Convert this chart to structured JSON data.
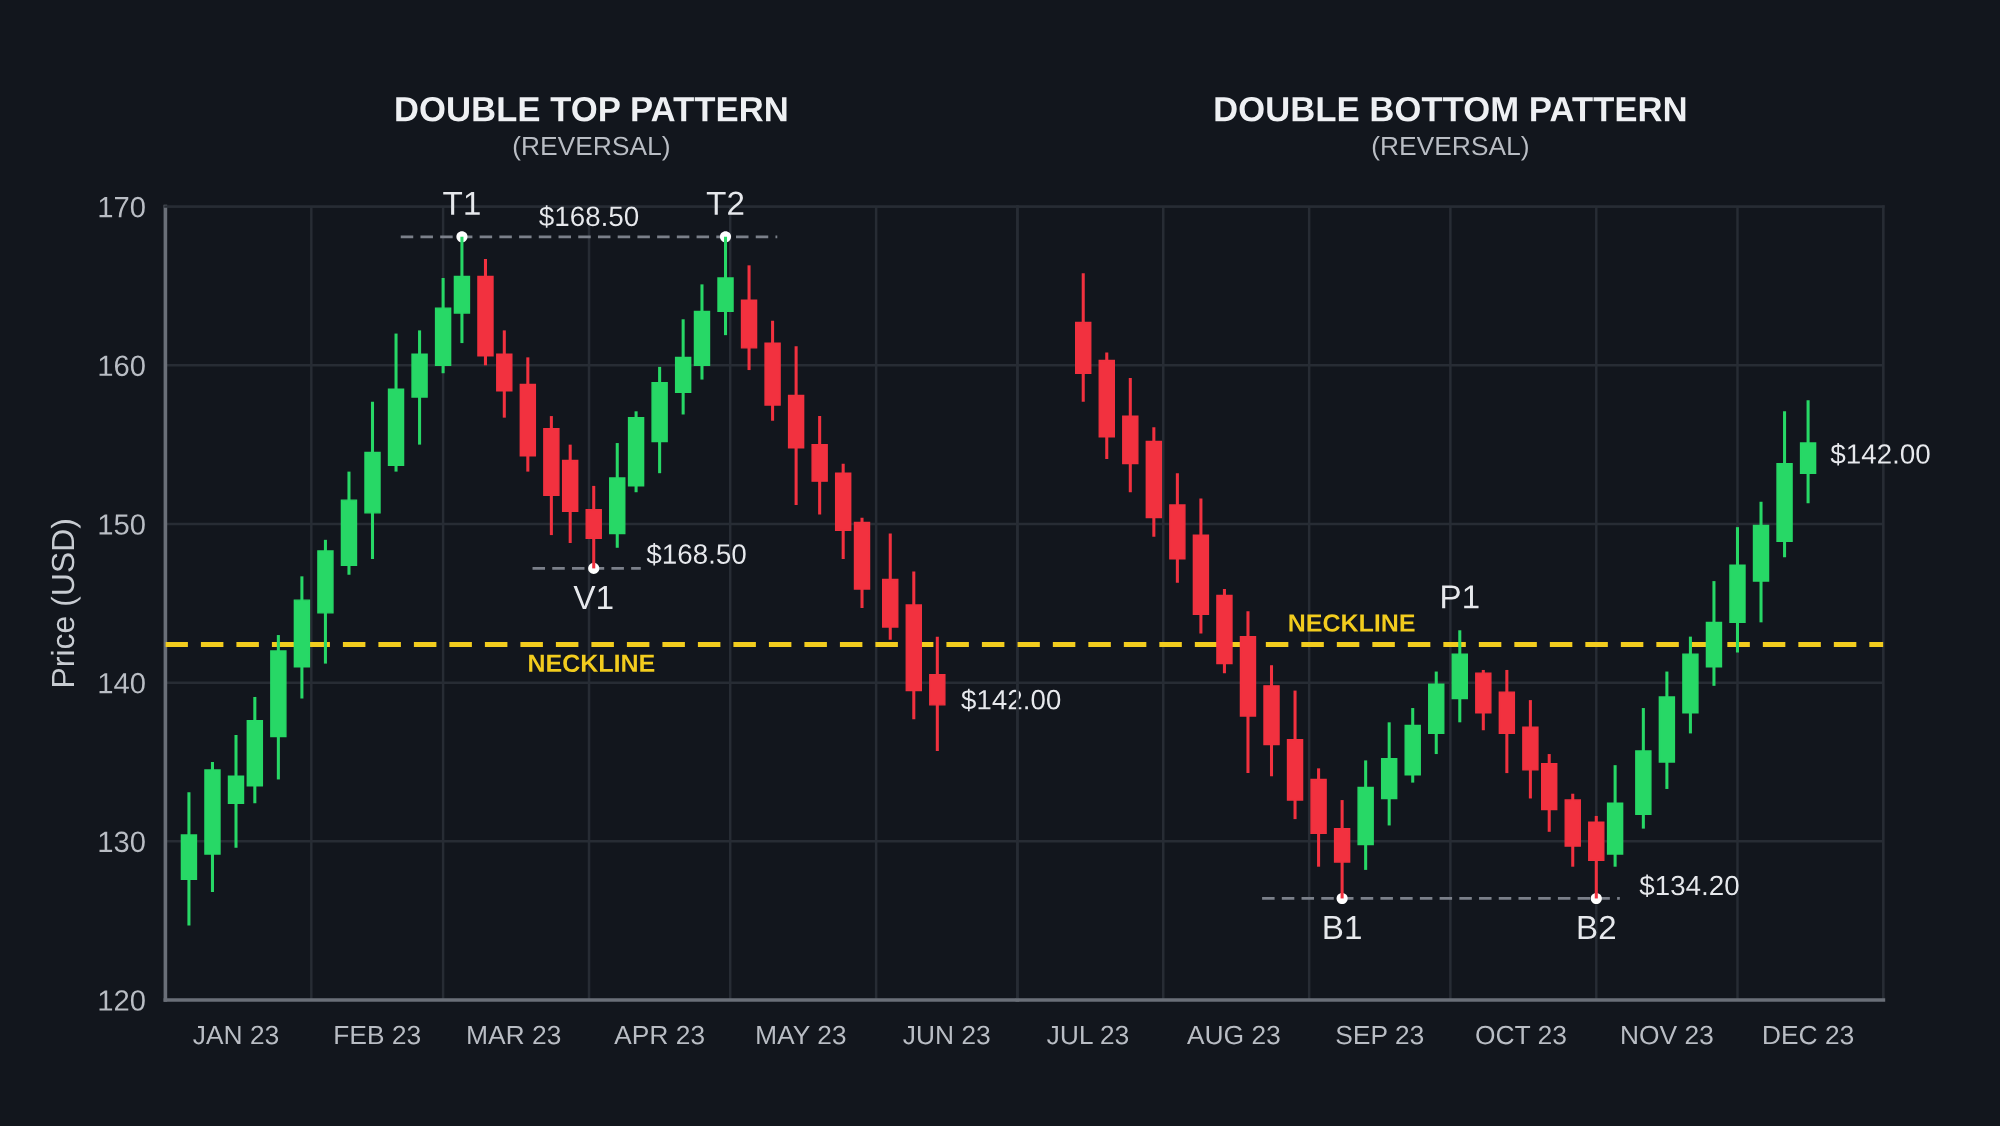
{
  "chart_data": [
    {
      "type": "candlestick",
      "title": "DOUBLE TOP PATTERN",
      "subtitle": "(REVERSAL)",
      "ylabel": "Price (USD)",
      "x": [
        "2023-01-06",
        "2023-01-11",
        "2023-01-16",
        "2023-01-20",
        "2023-01-25",
        "2023-01-30",
        "2023-02-04",
        "2023-02-09",
        "2023-02-14",
        "2023-02-19",
        "2023-02-24",
        "2023-03-01",
        "2023-03-05",
        "2023-03-10",
        "2023-03-14",
        "2023-03-19",
        "2023-03-24",
        "2023-03-28",
        "2023-04-02",
        "2023-04-07",
        "2023-04-11",
        "2023-04-16",
        "2023-04-21",
        "2023-04-25",
        "2023-04-30",
        "2023-05-05",
        "2023-05-10",
        "2023-05-15",
        "2023-05-20",
        "2023-05-25",
        "2023-05-29",
        "2023-06-04",
        "2023-06-09",
        "2023-06-14"
      ],
      "ohlc": [
        [
          127.6,
          133.1,
          124.7,
          130.4
        ],
        [
          129.2,
          135.0,
          126.8,
          134.5
        ],
        [
          132.4,
          136.7,
          129.6,
          134.1
        ],
        [
          133.5,
          139.1,
          132.4,
          137.6
        ],
        [
          136.6,
          143.0,
          133.9,
          142.0
        ],
        [
          141.0,
          146.7,
          139.0,
          145.2
        ],
        [
          144.4,
          149.0,
          141.2,
          148.3
        ],
        [
          147.4,
          153.3,
          146.8,
          151.5
        ],
        [
          150.7,
          157.7,
          147.8,
          154.5
        ],
        [
          153.7,
          162.0,
          153.3,
          158.5
        ],
        [
          158.0,
          162.2,
          155.0,
          160.7
        ],
        [
          160.0,
          165.5,
          159.5,
          163.6
        ],
        [
          163.3,
          168.1,
          161.4,
          165.6
        ],
        [
          165.6,
          166.7,
          160.0,
          160.6
        ],
        [
          160.7,
          162.2,
          156.7,
          158.4
        ],
        [
          158.8,
          160.5,
          153.3,
          154.3
        ],
        [
          156.0,
          156.8,
          149.3,
          151.8
        ],
        [
          154.0,
          155.0,
          148.8,
          150.8
        ],
        [
          150.9,
          152.4,
          147.2,
          149.1
        ],
        [
          149.4,
          155.1,
          148.5,
          152.9
        ],
        [
          152.4,
          157.1,
          152.0,
          156.7
        ],
        [
          155.2,
          159.9,
          153.2,
          158.9
        ],
        [
          158.3,
          162.9,
          156.9,
          160.5
        ],
        [
          160.0,
          165.1,
          159.1,
          163.4
        ],
        [
          163.4,
          168.1,
          161.9,
          165.5
        ],
        [
          164.1,
          166.3,
          159.7,
          161.1
        ],
        [
          161.4,
          162.8,
          156.5,
          157.5
        ],
        [
          158.1,
          161.2,
          151.2,
          154.8
        ],
        [
          155.0,
          156.8,
          150.6,
          152.7
        ],
        [
          153.2,
          153.8,
          147.8,
          149.6
        ],
        [
          150.1,
          150.4,
          144.7,
          145.9
        ],
        [
          146.5,
          149.4,
          142.7,
          143.5
        ],
        [
          144.9,
          147.0,
          137.7,
          139.5
        ],
        [
          140.5,
          142.9,
          135.7,
          138.6
        ]
      ],
      "colors": [
        "#27d866",
        "#27d866",
        "#27d866",
        "#27d866",
        "#27d866",
        "#27d866",
        "#27d866",
        "#27d866",
        "#27d866",
        "#27d866",
        "#27d866",
        "#27d866",
        "#27d866",
        "#f2313f",
        "#f2313f",
        "#f2313f",
        "#f2313f",
        "#f2313f",
        "#f2313f",
        "#27d866",
        "#27d866",
        "#27d866",
        "#27d866",
        "#27d866",
        "#27d866",
        "#f2313f",
        "#f2313f",
        "#f2313f",
        "#f2313f",
        "#f2313f",
        "#f2313f",
        "#f2313f",
        "#f2313f",
        "#f2313f"
      ],
      "xlim": [
        "2023-01-01",
        "2023-07-01"
      ],
      "xticks": [
        {
          "value": "2023-01-01",
          "label": null
        },
        {
          "value": "2023-01-16",
          "label": "JAN 23"
        },
        {
          "value": "2023-02-01",
          "label": null
        },
        {
          "value": "2023-02-15",
          "label": "FEB 23"
        },
        {
          "value": "2023-03-01",
          "label": null
        },
        {
          "value": "2023-03-16",
          "label": "MAR 23"
        },
        {
          "value": "2023-04-01",
          "label": null
        },
        {
          "value": "2023-04-16",
          "label": "APR 23"
        },
        {
          "value": "2023-05-01",
          "label": null
        },
        {
          "value": "2023-05-16",
          "label": "MAY 23"
        },
        {
          "value": "2023-06-01",
          "label": null
        },
        {
          "value": "2023-06-16",
          "label": "JUN 23"
        },
        {
          "value": "2023-07-01",
          "label": null
        }
      ],
      "ylim": [
        120,
        170
      ],
      "yticks": [
        120,
        130,
        140,
        150,
        160,
        170
      ],
      "grid": true,
      "ref_lines": [
        {
          "axis": "y",
          "value": 142.4,
          "label": "NECKLINE",
          "color": "#f2cc1e",
          "line_style": "dashed"
        }
      ],
      "series": [
        {
          "type": "line",
          "x": [
            "2023-02-20",
            "2023-05-11"
          ],
          "values": [
            168.1,
            168.1
          ],
          "color": "#7b808a",
          "line_style": "dashed"
        },
        {
          "type": "line",
          "x": [
            "2023-03-20",
            "2023-04-12"
          ],
          "values": [
            147.2,
            147.2
          ],
          "color": "#7b808a",
          "line_style": "dashed"
        },
        {
          "type": "scatter",
          "x": [
            "2023-03-05",
            "2023-04-30",
            "2023-04-02"
          ],
          "values": [
            168.1,
            168.1,
            147.2
          ],
          "color": "#ffffff",
          "marker": "circle"
        }
      ],
      "annotations": [
        {
          "text": "T1",
          "x": "2023-03-05",
          "y": 168.1
        },
        {
          "text": "T2",
          "x": "2023-04-30",
          "y": 168.1
        },
        {
          "text": "$168.50",
          "x": "2023-04-01",
          "y": 168.1
        },
        {
          "text": "V1",
          "x": "2023-04-02",
          "y": 147.2
        },
        {
          "text": "$168.50",
          "x": "2023-04-12",
          "y": 147.2
        },
        {
          "text": "$142.00",
          "x": "2023-06-14",
          "y": 138.6
        }
      ]
    },
    {
      "type": "candlestick",
      "title": "DOUBLE BOTTOM PATTERN",
      "subtitle": "(REVERSAL)",
      "x": [
        "2023-07-15",
        "2023-07-20",
        "2023-07-25",
        "2023-07-30",
        "2023-08-04",
        "2023-08-09",
        "2023-08-14",
        "2023-08-19",
        "2023-08-24",
        "2023-08-29",
        "2023-09-03",
        "2023-09-08",
        "2023-09-13",
        "2023-09-18",
        "2023-09-23",
        "2023-09-28",
        "2023-10-03",
        "2023-10-08",
        "2023-10-13",
        "2023-10-18",
        "2023-10-22",
        "2023-10-27",
        "2023-11-01",
        "2023-11-05",
        "2023-11-11",
        "2023-11-16",
        "2023-11-21",
        "2023-11-26",
        "2023-12-01",
        "2023-12-06",
        "2023-12-11",
        "2023-12-16"
      ],
      "ohlc": [
        [
          162.7,
          165.8,
          157.7,
          159.5
        ],
        [
          160.3,
          160.8,
          154.1,
          155.5
        ],
        [
          156.8,
          159.2,
          152.0,
          153.8
        ],
        [
          155.2,
          156.1,
          149.2,
          150.4
        ],
        [
          151.2,
          153.2,
          146.3,
          147.8
        ],
        [
          149.3,
          151.6,
          143.1,
          144.3
        ],
        [
          145.5,
          145.9,
          140.6,
          141.2
        ],
        [
          142.9,
          144.5,
          134.3,
          137.9
        ],
        [
          139.8,
          141.1,
          134.1,
          136.1
        ],
        [
          136.4,
          139.5,
          131.4,
          132.6
        ],
        [
          133.9,
          134.6,
          128.4,
          130.5
        ],
        [
          130.8,
          132.6,
          126.4,
          128.7
        ],
        [
          129.8,
          135.1,
          128.2,
          133.4
        ],
        [
          132.7,
          137.5,
          131.0,
          135.2
        ],
        [
          134.2,
          138.4,
          133.7,
          137.3
        ],
        [
          136.8,
          140.7,
          135.5,
          139.9
        ],
        [
          139.0,
          143.3,
          137.5,
          141.8
        ],
        [
          140.6,
          140.8,
          137.0,
          138.1
        ],
        [
          139.4,
          140.8,
          134.3,
          136.8
        ],
        [
          137.2,
          138.9,
          132.7,
          134.5
        ],
        [
          134.9,
          135.5,
          130.6,
          132.0
        ],
        [
          132.6,
          133.0,
          128.4,
          129.7
        ],
        [
          131.2,
          131.6,
          126.4,
          128.8
        ],
        [
          129.2,
          134.8,
          128.4,
          132.4
        ],
        [
          131.7,
          138.4,
          130.8,
          135.7
        ],
        [
          135.0,
          140.7,
          133.3,
          139.1
        ],
        [
          138.1,
          142.9,
          136.8,
          141.8
        ],
        [
          141.0,
          146.4,
          139.8,
          143.8
        ],
        [
          143.8,
          149.8,
          141.9,
          147.4
        ],
        [
          146.4,
          151.4,
          143.8,
          149.9
        ],
        [
          148.9,
          157.1,
          147.9,
          153.8
        ],
        [
          153.2,
          157.8,
          151.3,
          155.1
        ]
      ],
      "colors": [
        "#f2313f",
        "#f2313f",
        "#f2313f",
        "#f2313f",
        "#f2313f",
        "#f2313f",
        "#f2313f",
        "#f2313f",
        "#f2313f",
        "#f2313f",
        "#f2313f",
        "#f2313f",
        "#27d866",
        "#27d866",
        "#27d866",
        "#27d866",
        "#27d866",
        "#f2313f",
        "#f2313f",
        "#f2313f",
        "#f2313f",
        "#f2313f",
        "#f2313f",
        "#27d866",
        "#27d866",
        "#27d866",
        "#27d866",
        "#27d866",
        "#27d866",
        "#27d866",
        "#27d866",
        "#27d866"
      ],
      "xlim": [
        "2023-07-01",
        "2024-01-01"
      ],
      "xticks": [
        {
          "value": "2023-07-01",
          "label": null
        },
        {
          "value": "2023-07-16",
          "label": "JUL 23"
        },
        {
          "value": "2023-08-01",
          "label": null
        },
        {
          "value": "2023-08-16",
          "label": "AUG 23"
        },
        {
          "value": "2023-09-01",
          "label": null
        },
        {
          "value": "2023-09-16",
          "label": "SEP 23"
        },
        {
          "value": "2023-10-01",
          "label": null
        },
        {
          "value": "2023-10-16",
          "label": "OCT 23"
        },
        {
          "value": "2023-11-01",
          "label": null
        },
        {
          "value": "2023-11-16",
          "label": "NOV 23"
        },
        {
          "value": "2023-12-01",
          "label": null
        },
        {
          "value": "2023-12-16",
          "label": "DEC 23"
        },
        {
          "value": "2024-01-01",
          "label": null
        }
      ],
      "ylim": [
        120,
        170
      ],
      "yticks": [
        120,
        130,
        140,
        150,
        160,
        170
      ],
      "tick_labels": "x",
      "grid": true,
      "ref_lines": [
        {
          "axis": "y",
          "value": 142.4,
          "label": "NECKLINE",
          "color": "#f2cc1e",
          "line_style": "dashed"
        }
      ],
      "series": [
        {
          "type": "line",
          "x": [
            "2023-08-22",
            "2023-11-06"
          ],
          "values": [
            126.4,
            126.4
          ],
          "color": "#7b808a",
          "line_style": "dashed"
        },
        {
          "type": "scatter",
          "x": [
            "2023-09-08",
            "2023-11-01"
          ],
          "values": [
            126.4,
            126.4
          ],
          "color": "#ffffff",
          "marker": "circle"
        }
      ],
      "annotations": [
        {
          "text": "B1",
          "x": "2023-09-08",
          "y": 126.4
        },
        {
          "text": "B2",
          "x": "2023-11-01",
          "y": 126.4
        },
        {
          "text": "P1",
          "x": "2023-10-03",
          "y": 143.3
        },
        {
          "text": "$134.20",
          "x": "2023-11-06",
          "y": 126.4
        },
        {
          "text": "$142.00",
          "x": "2023-12-16",
          "y": 155.1
        }
      ]
    }
  ]
}
